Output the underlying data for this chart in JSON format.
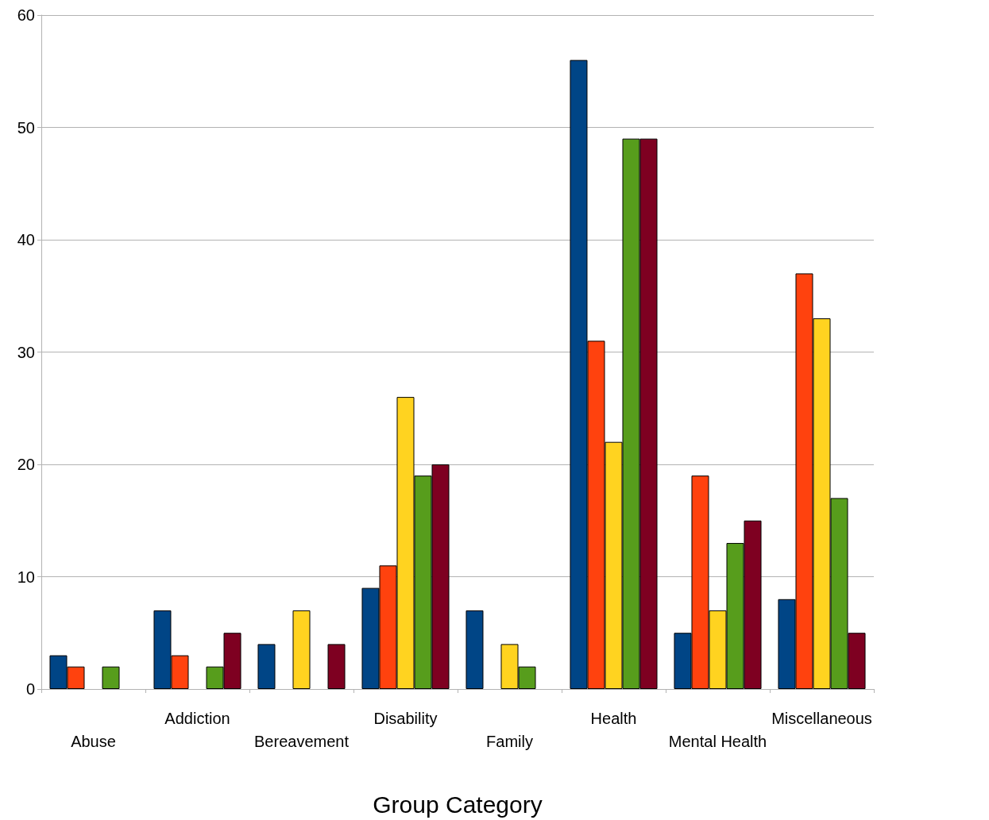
{
  "chart_data": {
    "type": "bar",
    "xlabel": "Group Category",
    "categories": [
      "Abuse",
      "Addiction",
      "Bereavement",
      "Disability",
      "Family",
      "Health",
      "Mental Health",
      "Miscellaneous"
    ],
    "series": [
      {
        "color": "#004586",
        "values": [
          3,
          7,
          4,
          9,
          7,
          56,
          5,
          8
        ]
      },
      {
        "color": "#ff420e",
        "values": [
          2,
          3,
          0,
          11,
          0,
          31,
          19,
          37
        ]
      },
      {
        "color": "#ffd320",
        "values": [
          0,
          0,
          7,
          26,
          4,
          22,
          7,
          33
        ]
      },
      {
        "color": "#579d1c",
        "values": [
          2,
          2,
          0,
          19,
          2,
          49,
          13,
          17
        ]
      },
      {
        "color": "#7e0021",
        "values": [
          0,
          5,
          4,
          20,
          0,
          49,
          15,
          5
        ]
      }
    ],
    "ylim": [
      0,
      60
    ],
    "yticks": [
      0,
      10,
      20,
      30,
      40,
      50,
      60
    ],
    "grid": "y"
  }
}
